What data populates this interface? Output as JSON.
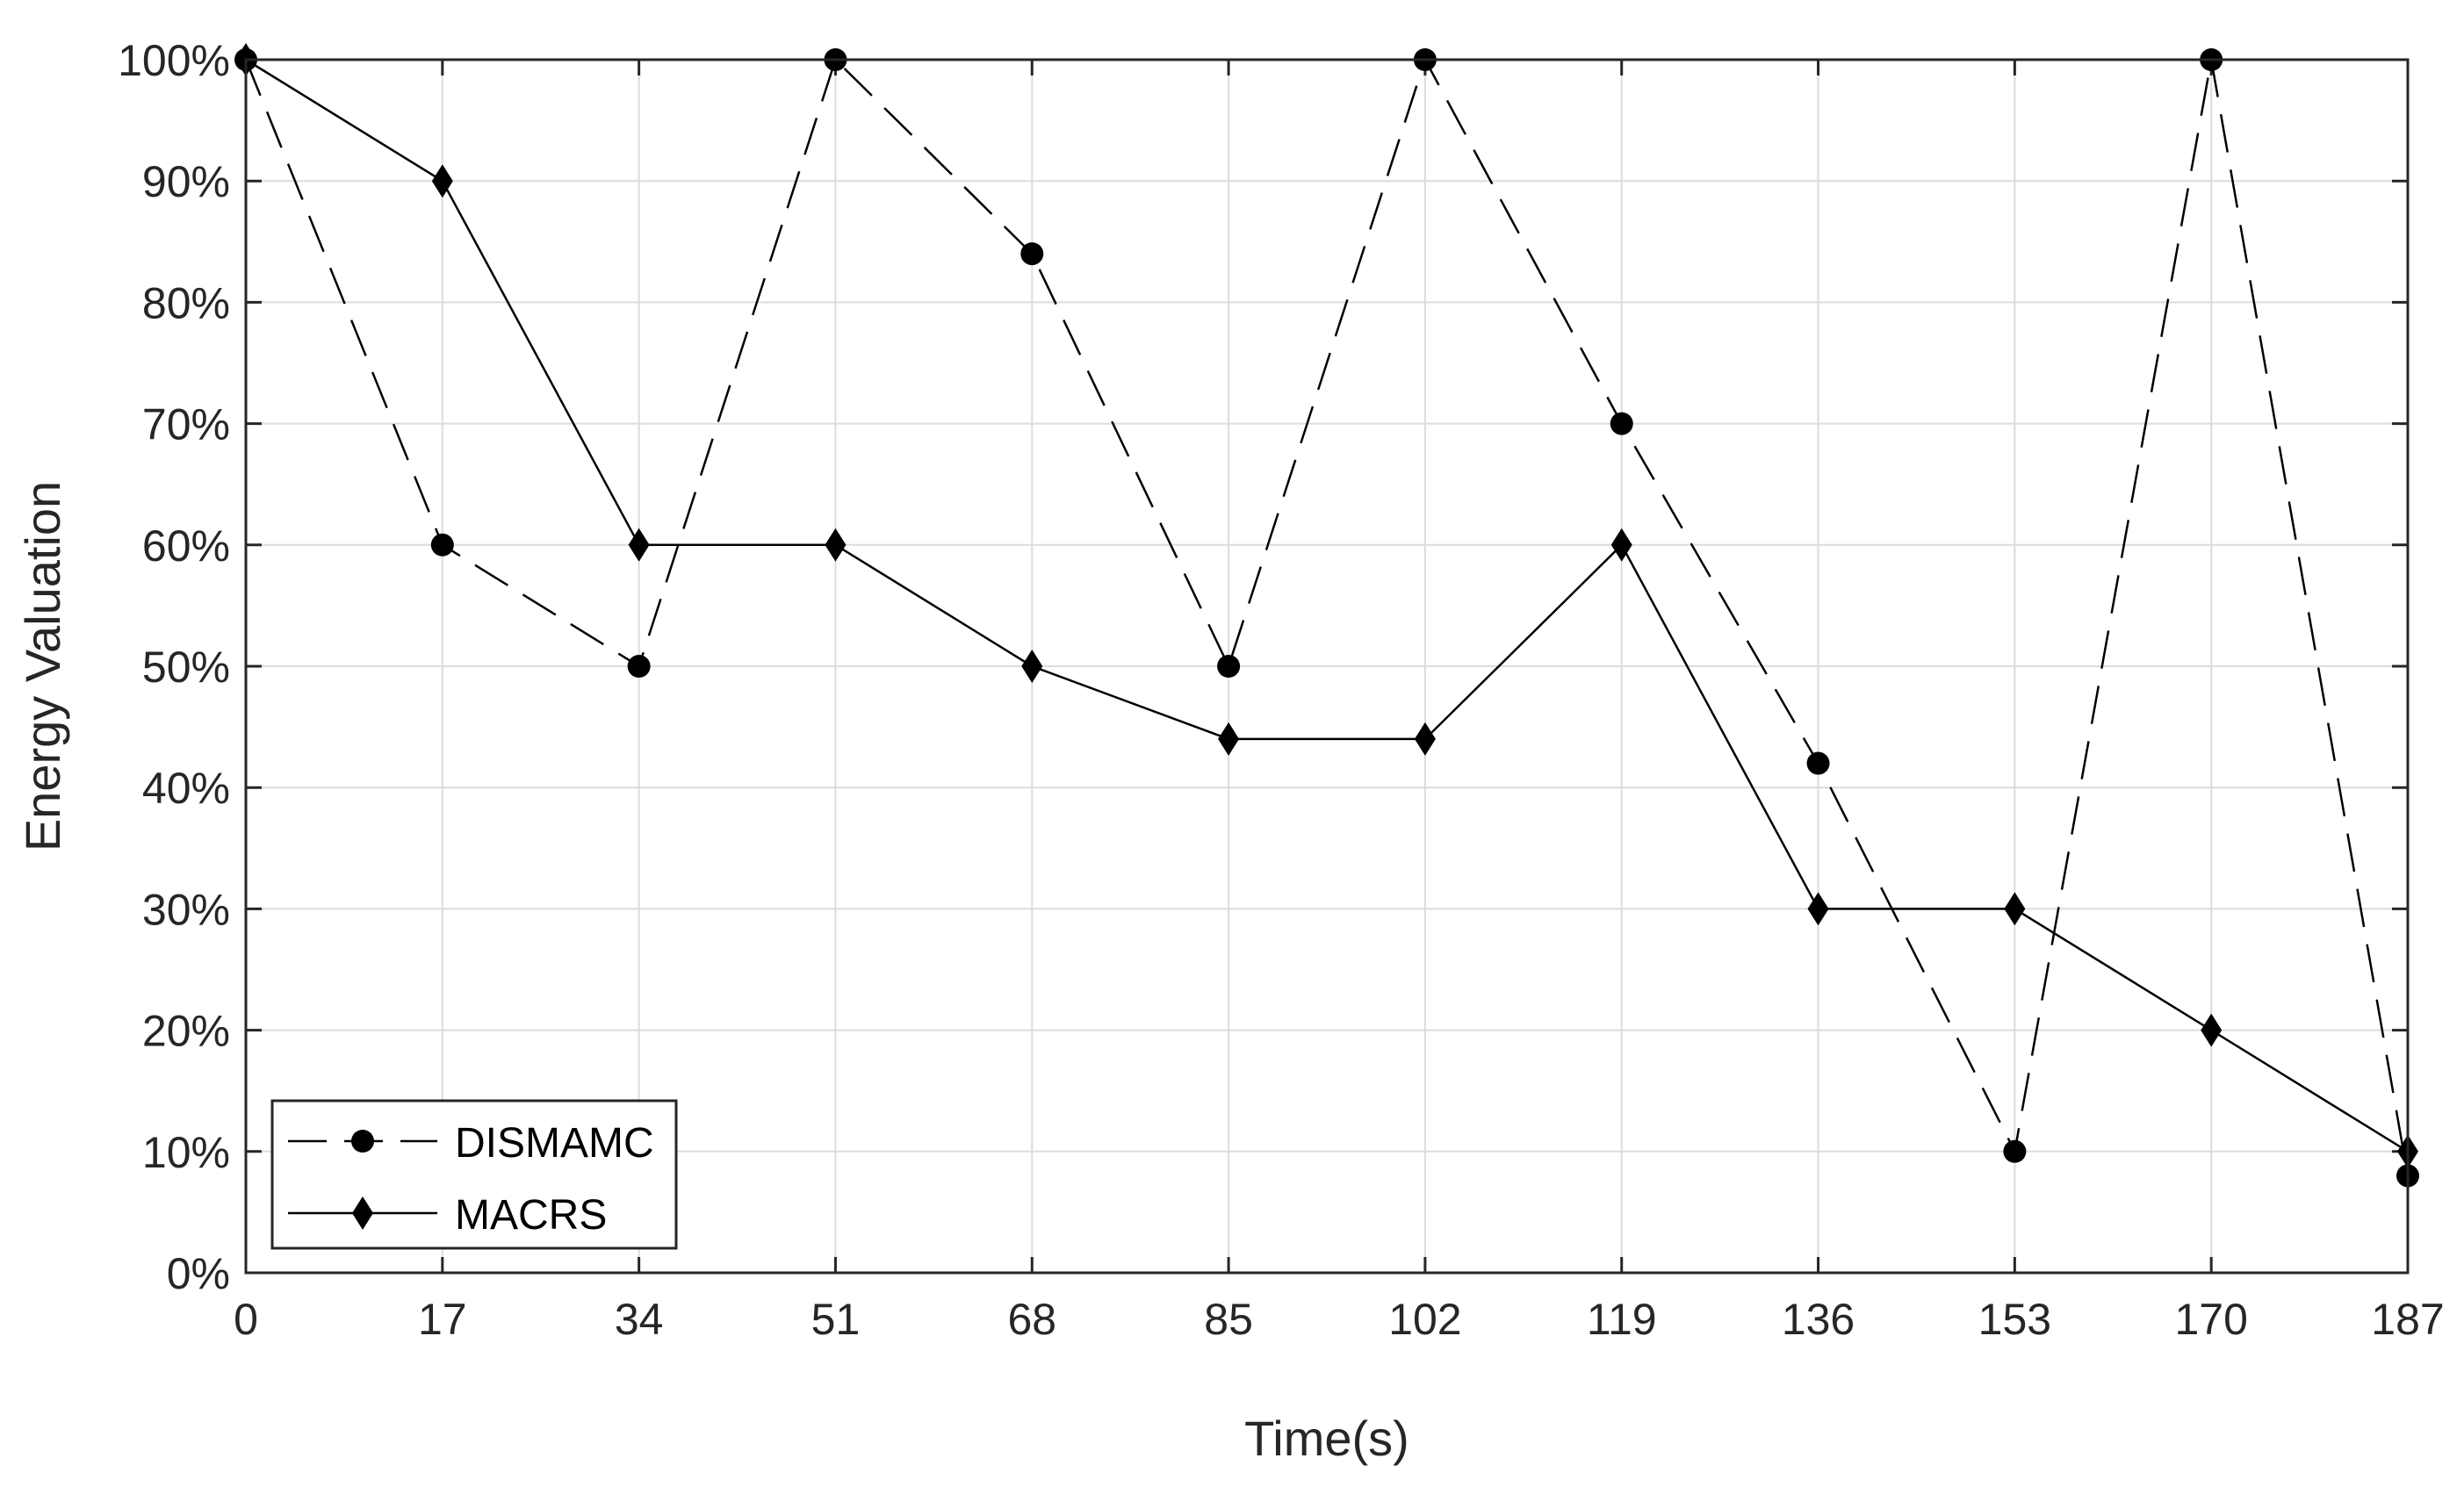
{
  "chart_data": {
    "type": "line",
    "title": "",
    "xlabel": "Time(s)",
    "ylabel": "Energy Valuation",
    "x": [
      0,
      17,
      34,
      51,
      68,
      85,
      102,
      119,
      136,
      153,
      170,
      187
    ],
    "x_tick_labels": [
      "0",
      "17",
      "34",
      "51",
      "68",
      "85",
      "102",
      "119",
      "136",
      "153",
      "170",
      "187"
    ],
    "xlim": [
      0,
      187
    ],
    "ylim": [
      0,
      100
    ],
    "y_ticks": [
      0,
      10,
      20,
      30,
      40,
      50,
      60,
      70,
      80,
      90,
      100
    ],
    "y_tick_labels": [
      "0%",
      "10%",
      "20%",
      "30%",
      "40%",
      "50%",
      "60%",
      "70%",
      "80%",
      "90%",
      "100%"
    ],
    "grid": true,
    "legend_position": "bottom-left",
    "series": [
      {
        "name": "DISMAMC",
        "line_style": "dashed",
        "marker": "circle",
        "color": "#000000",
        "values": [
          100,
          60,
          50,
          100,
          84,
          50,
          100,
          70,
          42,
          10,
          100,
          8
        ]
      },
      {
        "name": "MACRS",
        "line_style": "solid",
        "marker": "diamond",
        "color": "#000000",
        "values": [
          100,
          90,
          60,
          60,
          50,
          44,
          44,
          60,
          30,
          30,
          20,
          10
        ]
      }
    ]
  }
}
